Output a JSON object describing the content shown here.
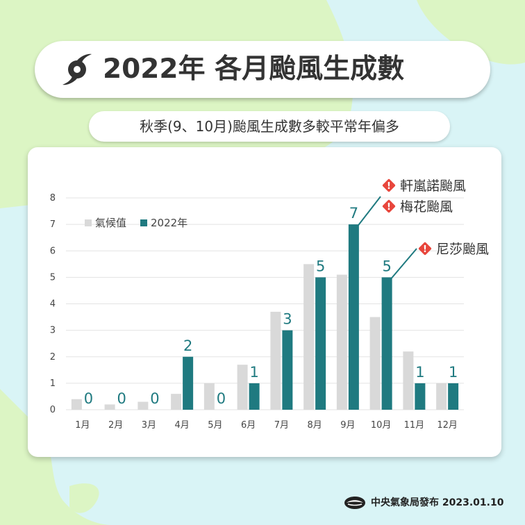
{
  "header": {
    "title": "2022年 各月颱風生成數",
    "subtitle": "秋季(9、10月)颱風生成數多較平常年偏多",
    "icon": "typhoon-icon"
  },
  "colors": {
    "climatology": "#d9d9d9",
    "year2022": "#1f7a80",
    "alert": "#e8463c",
    "background_sea": "#d9f4f6",
    "background_land": "#dcf5c4"
  },
  "chart_data": {
    "type": "bar",
    "categories": [
      "1月",
      "2月",
      "3月",
      "4月",
      "5月",
      "6月",
      "7月",
      "8月",
      "9月",
      "10月",
      "11月",
      "12月"
    ],
    "series": [
      {
        "name": "氣候值",
        "values": [
          0.4,
          0.2,
          0.3,
          0.6,
          1.0,
          1.7,
          3.7,
          5.5,
          5.1,
          3.5,
          2.2,
          1.0
        ]
      },
      {
        "name": "2022年",
        "values": [
          0,
          0,
          0,
          2,
          0,
          1,
          3,
          5,
          7,
          5,
          1,
          1
        ]
      }
    ],
    "data_labels": [
      "0",
      "0",
      "0",
      "2",
      "0",
      "1",
      "3",
      "5",
      "7",
      "5",
      "1",
      "1"
    ],
    "y_ticks": [
      "0",
      "1",
      "2",
      "3",
      "4",
      "5",
      "6",
      "7",
      "8"
    ],
    "ylim": [
      0,
      8
    ],
    "grid": true,
    "legend": "top-left",
    "annotations": [
      {
        "month": "9月",
        "label": "軒嵐諾颱風"
      },
      {
        "month": "9月",
        "label": "梅花颱風"
      },
      {
        "month": "10月",
        "label": "尼莎颱風"
      }
    ]
  },
  "footer": {
    "publisher": "中央氣象局發布",
    "date": "2023.01.10"
  }
}
